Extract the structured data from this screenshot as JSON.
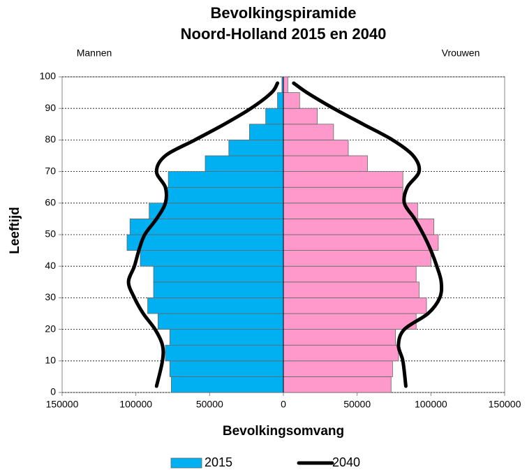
{
  "chart_data": {
    "type": "bar",
    "orientation": "horizontal",
    "title": "Bevolkingspiramide",
    "subtitle": "Noord-Holland 2015 en 2040",
    "left_label": "Mannen",
    "right_label": "Vrouwen",
    "x_label": "Bevolkingsomvang",
    "y_label": "Leeftijd",
    "bins": [
      0,
      5,
      10,
      15,
      20,
      25,
      30,
      35,
      40,
      45,
      50,
      55,
      60,
      65,
      70,
      75,
      80,
      85,
      90,
      95,
      100
    ],
    "series": [
      {
        "name": "2015",
        "type": "bar",
        "colors": [
          "#00b0f0",
          "#ff99cc"
        ],
        "men": [
          -76000,
          -77000,
          -80000,
          -77000,
          -85000,
          -92000,
          -88000,
          -88000,
          -97000,
          -106000,
          -104000,
          -91000,
          -80000,
          -78000,
          -53000,
          -37000,
          -23000,
          -12000,
          -4000,
          -1000
        ],
        "women": [
          73000,
          74000,
          78000,
          76000,
          90000,
          97000,
          92000,
          90000,
          100000,
          105000,
          102000,
          91000,
          81000,
          81000,
          57000,
          44000,
          34000,
          23000,
          11000,
          3000
        ]
      },
      {
        "name": "2040",
        "type": "line",
        "color": "#000000",
        "x": [
          2,
          10,
          15,
          20,
          25,
          30,
          35,
          40,
          45,
          50,
          55,
          60,
          65,
          70,
          75,
          80,
          85,
          90,
          95,
          98
        ],
        "men": [
          -86000,
          -82000,
          -82000,
          -87000,
          -95000,
          -101000,
          -105000,
          -101000,
          -98000,
          -94000,
          -86000,
          -80000,
          -80000,
          -86000,
          -80000,
          -60000,
          -40000,
          -22000,
          -8000,
          -4000
        ],
        "women": [
          83000,
          81000,
          78000,
          82000,
          98000,
          106000,
          107000,
          104000,
          100000,
          95000,
          89000,
          82000,
          84000,
          92000,
          88000,
          74000,
          54000,
          34000,
          16000,
          7000
        ]
      }
    ],
    "xlim": [
      -150000,
      150000
    ],
    "xticks": [
      {
        "value": -150000,
        "label": "150000"
      },
      {
        "value": -100000,
        "label": "100000"
      },
      {
        "value": -50000,
        "label": "50000"
      },
      0,
      50000,
      100000,
      150000
    ],
    "ylim": [
      0,
      100
    ],
    "yticks": [
      0,
      10,
      20,
      30,
      40,
      50,
      60,
      70,
      80,
      90,
      100
    ],
    "grid": true
  }
}
